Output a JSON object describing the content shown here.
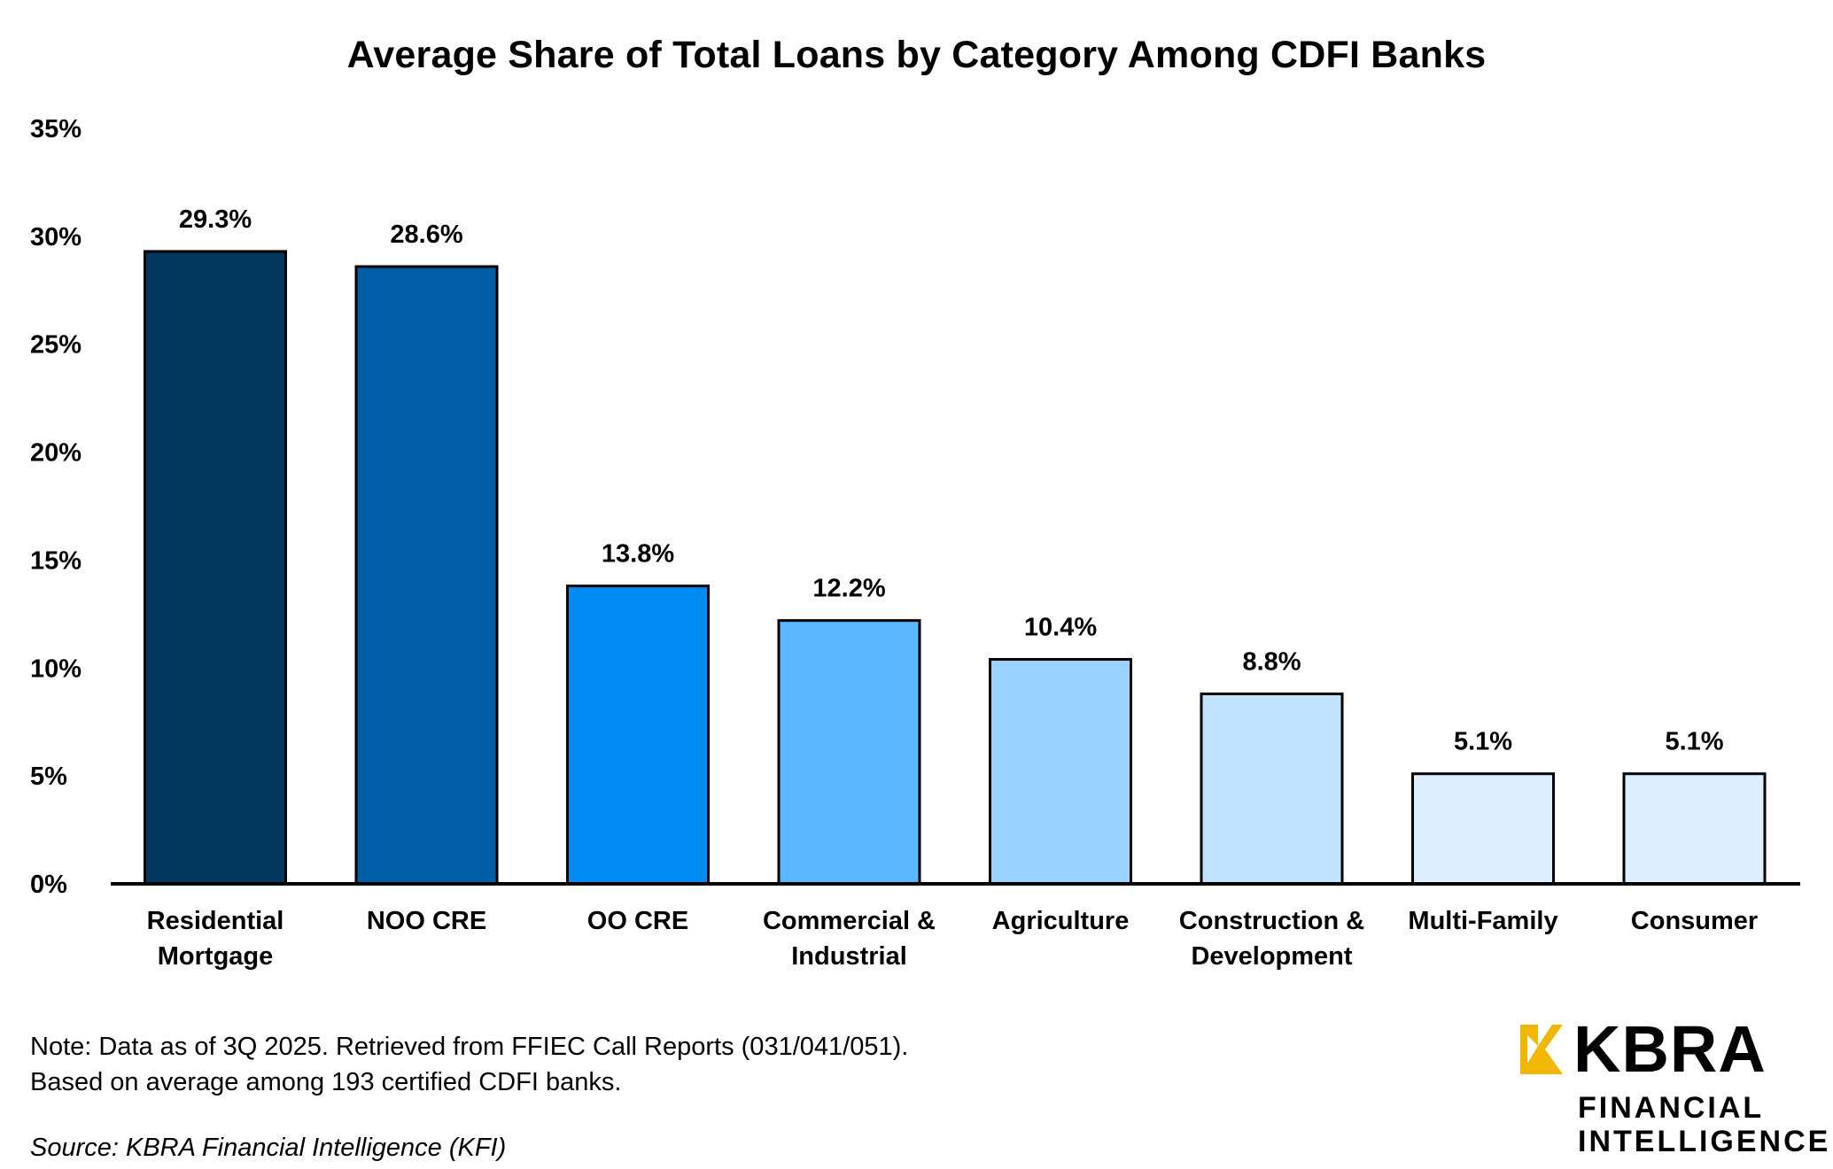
{
  "chart_data": {
    "type": "bar",
    "title": "Average Share of Total Loans by Category Among CDFI Banks",
    "xlabel": "",
    "ylabel": "",
    "ylim": [
      0,
      35
    ],
    "yticks": [
      0,
      5,
      10,
      15,
      20,
      25,
      30,
      35
    ],
    "ytick_labels": [
      "0%",
      "5%",
      "10%",
      "15%",
      "20%",
      "25%",
      "30%",
      "35%"
    ],
    "grid": false,
    "categories": [
      [
        "Residential",
        "Mortgage"
      ],
      [
        "NOO CRE"
      ],
      [
        "OO CRE"
      ],
      [
        "Commercial &",
        "Industrial"
      ],
      [
        "Agriculture"
      ],
      [
        "Construction &",
        "Development"
      ],
      [
        "Multi-Family"
      ],
      [
        "Consumer"
      ]
    ],
    "values": [
      29.3,
      28.6,
      13.8,
      12.2,
      10.4,
      8.8,
      5.1,
      5.1
    ],
    "data_labels": [
      "29.3%",
      "28.6%",
      "13.8%",
      "12.2%",
      "10.4%",
      "8.8%",
      "5.1%",
      "5.1%"
    ],
    "bar_colors": [
      "#02375E",
      "#005EA6",
      "#008CF5",
      "#5BB7FF",
      "#9BD2FF",
      "#C2E3FF",
      "#DDEEFF",
      "#DDEEFF"
    ]
  },
  "footer": {
    "note_line1": "Note: Data as of 3Q 2025. Retrieved from FFIEC Call Reports (031/041/051).",
    "note_line2": "Based on average among 193 certified CDFI banks.",
    "source": "Source: KBRA Financial Intelligence (KFI)"
  },
  "logo": {
    "brand": "KBRA",
    "sub1": "FINANCIAL",
    "sub2": "INTELLIGENCE",
    "accent_color": "#F2B705"
  }
}
